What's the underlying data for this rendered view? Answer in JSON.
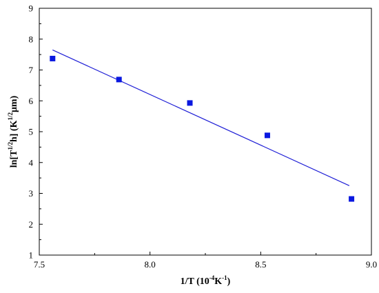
{
  "chart_data": {
    "type": "scatter",
    "xlabel": "1/T (10",
    "xlabel_sup": "-4",
    "xlabel_mid": "K",
    "xlabel_sup2": "-1",
    "xlabel_end": ")",
    "ylabel_parts": [
      "ln[T",
      "1/2",
      "h] (K",
      "1/2",
      "μm)"
    ],
    "xlim": [
      7.5,
      9.0
    ],
    "ylim": [
      1,
      9
    ],
    "xticks": [
      7.5,
      8.0,
      8.5,
      9.0
    ],
    "xtick_labels": [
      "7.5",
      "8.0",
      "8.5",
      "9.0"
    ],
    "yticks": [
      1,
      2,
      3,
      4,
      5,
      6,
      7,
      8,
      9
    ],
    "ytick_labels": [
      "1",
      "2",
      "3",
      "4",
      "5",
      "6",
      "7",
      "8",
      "9"
    ],
    "series": [
      {
        "marker": "square",
        "color": "#0a18e0",
        "x": [
          7.56,
          7.86,
          8.18,
          8.53,
          8.91
        ],
        "y": [
          7.37,
          6.69,
          5.93,
          4.88,
          2.82
        ]
      }
    ],
    "fit_line": {
      "color": "#1f1fd6",
      "x": [
        7.56,
        8.9
      ],
      "y": [
        7.65,
        3.25
      ]
    },
    "grid": false
  }
}
